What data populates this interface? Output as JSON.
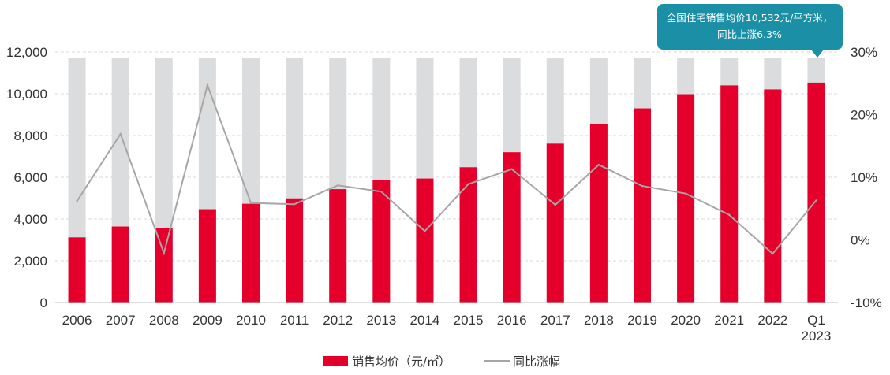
{
  "chart_data": {
    "type": "bar",
    "categories": [
      "2006",
      "2007",
      "2008",
      "2009",
      "2010",
      "2011",
      "2012",
      "2013",
      "2014",
      "2015",
      "2016",
      "2017",
      "2018",
      "2019",
      "2020",
      "2021",
      "2022",
      "Q1\n2023"
    ],
    "series": [
      {
        "name": "销售均价（元/㎡）",
        "kind": "bar",
        "axis": "left",
        "color": "#e4002b",
        "values": [
          3120,
          3640,
          3580,
          4470,
          4730,
          4990,
          5430,
          5850,
          5940,
          6480,
          7200,
          7610,
          8550,
          9300,
          9980,
          10400,
          10210,
          10532
        ]
      },
      {
        "name": "同比涨幅",
        "kind": "line",
        "axis": "right",
        "color": "#a6a6a6",
        "values": [
          6.2,
          16.9,
          -2.1,
          24.7,
          5.9,
          5.7,
          8.7,
          7.7,
          1.4,
          8.9,
          11.3,
          5.6,
          12.0,
          8.6,
          7.4,
          4.0,
          -2.2,
          6.3
        ]
      }
    ],
    "left_axis": {
      "min": 0,
      "max": 12000,
      "ticks": [
        0,
        2000,
        4000,
        6000,
        8000,
        10000,
        12000
      ],
      "tick_labels": [
        "0",
        "2,000",
        "4,000",
        "6,000",
        "8,000",
        "10,000",
        "12,000"
      ]
    },
    "right_axis": {
      "min": -10,
      "max": 30,
      "ticks": [
        -10,
        0,
        10,
        20,
        30
      ],
      "tick_labels": [
        "-10%",
        "0%",
        "10%",
        "20%",
        "30%"
      ]
    },
    "background_bar_value": 11700,
    "background_bar_color": "#dbdcdd",
    "grid": true,
    "legend_position": "bottom",
    "annotation": {
      "lines": [
        "全国住宅销售均价10,532元/平方米，",
        "同比上涨6.3%"
      ],
      "target_category": "Q1\n2023",
      "color": "#1a8fa5"
    }
  }
}
